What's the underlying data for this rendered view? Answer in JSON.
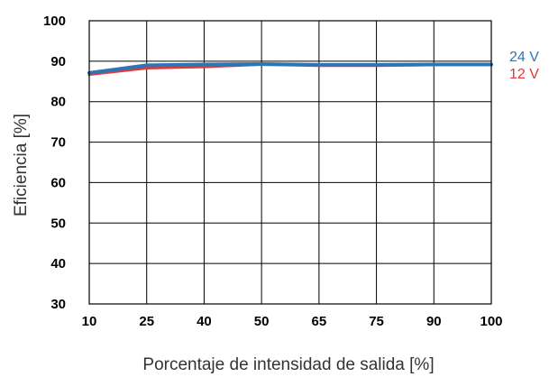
{
  "chart_data": {
    "type": "line",
    "title": "",
    "xlabel": "Porcentaje de intensidad de salida [%]",
    "ylabel": "Eficiencia [%]",
    "x": [
      10,
      25,
      40,
      50,
      65,
      75,
      90,
      100
    ],
    "x_tick_labels": [
      "10",
      "25",
      "40",
      "50",
      "65",
      "75",
      "90",
      "100"
    ],
    "y_tick_labels": [
      "30",
      "40",
      "50",
      "60",
      "70",
      "80",
      "90",
      "100"
    ],
    "ylim": [
      30,
      100
    ],
    "grid": true,
    "series": [
      {
        "name": "12 V",
        "color": "#e0383b",
        "values": [
          86.7,
          88.3,
          88.6,
          89.2,
          88.9,
          88.9,
          89.1,
          89.1
        ]
      },
      {
        "name": "24 V",
        "color": "#2e75b6",
        "values": [
          87.1,
          89.0,
          89.2,
          89.3,
          89.1,
          89.1,
          89.2,
          89.2
        ]
      }
    ]
  }
}
